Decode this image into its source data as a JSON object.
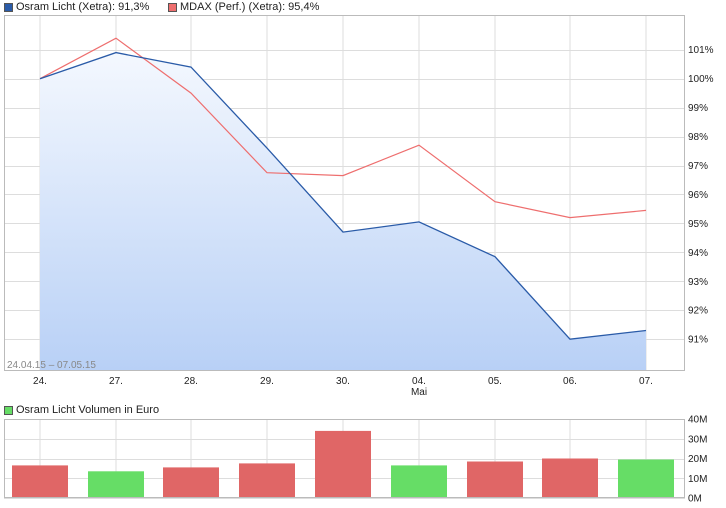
{
  "legend": {
    "series1": "Osram Licht (Xetra): 91,3%",
    "series2": "MDAX (Perf.) (Xetra): 95,4%",
    "volume": "Osram Licht Volumen in Euro"
  },
  "colors": {
    "series1": "#2a5ba8",
    "series2": "#ee6e6e",
    "area_top": "#f4f8fe",
    "area_bottom": "#b8d0f6",
    "vol_down": "#e06666",
    "vol_up": "#66dd66",
    "grid": "#dddddd",
    "frame": "#bbbbbb"
  },
  "date_range": "24.04.15 – 07.05.15",
  "chart_data": [
    {
      "type": "area",
      "x": [
        "24.",
        "27.",
        "28.",
        "29.",
        "30.",
        "04.",
        "05.",
        "06.",
        "07."
      ],
      "x_sublabels": {
        "04.": "Mai"
      },
      "series": [
        {
          "name": "Osram Licht (Xetra): 91,3%",
          "values": [
            100.0,
            100.9,
            100.4,
            97.6,
            94.7,
            95.05,
            93.85,
            91.0,
            91.3
          ]
        },
        {
          "name": "MDAX (Perf.) (Xetra): 95,4%",
          "values": [
            100.0,
            101.4,
            99.5,
            96.75,
            96.65,
            97.7,
            95.75,
            95.2,
            95.45
          ]
        }
      ],
      "yticks": [
        "91%",
        "92%",
        "93%",
        "94%",
        "95%",
        "96%",
        "97%",
        "98%",
        "99%",
        "100%",
        "101%"
      ],
      "ytick_values": [
        91,
        92,
        93,
        94,
        95,
        96,
        97,
        98,
        99,
        100,
        101
      ],
      "ylim": [
        89.9,
        102.2
      ],
      "grid": true,
      "legend_position": "top-left"
    },
    {
      "type": "bar",
      "categories": [
        "24.",
        "27.",
        "28.",
        "29.",
        "30.",
        "04.",
        "05.",
        "06.",
        "07."
      ],
      "series": [
        {
          "name": "Osram Licht Volumen in Euro",
          "values": [
            16.5,
            13.5,
            15.5,
            17.5,
            34,
            16.5,
            18.5,
            20,
            19.5
          ]
        }
      ],
      "directions": [
        "down",
        "up",
        "down",
        "down",
        "down",
        "up",
        "down",
        "down",
        "up"
      ],
      "yticks": [
        "0M",
        "10M",
        "20M",
        "30M",
        "40M"
      ],
      "ytick_values": [
        0,
        10,
        20,
        30,
        40
      ],
      "ylim": [
        0,
        40
      ],
      "grid": true,
      "legend_position": "top-left"
    }
  ]
}
